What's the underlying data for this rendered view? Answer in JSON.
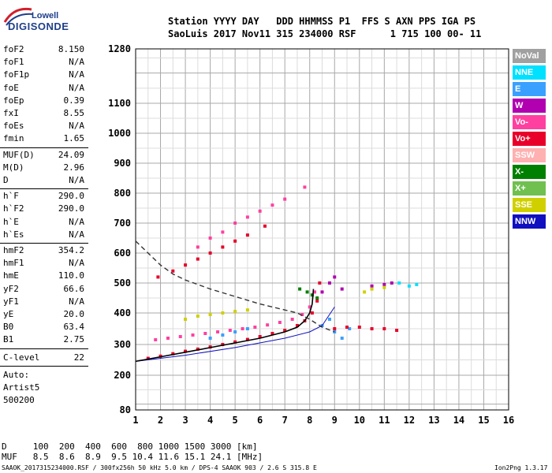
{
  "logo": {
    "line1": "Lowell",
    "line2": "DIGISONDE"
  },
  "header": {
    "row1": "Station YYYY DAY   DDD HHMMSS P1  FFS S AXN PPS IGA PS",
    "row2": "SaoLuis 2017 Nov11 315 234000 RSF      1 715 100 00- 11"
  },
  "params_group1": [
    {
      "name": "foF2",
      "value": "8.150"
    },
    {
      "name": "foF1",
      "value": "N/A"
    },
    {
      "name": "foF1p",
      "value": "N/A"
    },
    {
      "name": "foE",
      "value": "N/A"
    },
    {
      "name": "foEp",
      "value": "0.39"
    },
    {
      "name": "fxI",
      "value": "8.55"
    },
    {
      "name": "foEs",
      "value": "N/A"
    },
    {
      "name": "fmin",
      "value": "1.65"
    }
  ],
  "params_group2": [
    {
      "name": "MUF(D)",
      "value": "24.09"
    },
    {
      "name": "M(D)",
      "value": "2.96"
    },
    {
      "name": "D",
      "value": "N/A"
    }
  ],
  "params_group3": [
    {
      "name": "h`F",
      "value": "290.0"
    },
    {
      "name": "h`F2",
      "value": "290.0"
    },
    {
      "name": "h`E",
      "value": "N/A"
    },
    {
      "name": "h`Es",
      "value": "N/A"
    }
  ],
  "params_group4": [
    {
      "name": "hmF2",
      "value": "354.2"
    },
    {
      "name": "hmF1",
      "value": "N/A"
    },
    {
      "name": "hmE",
      "value": "110.0"
    },
    {
      "name": "yF2",
      "value": "66.6"
    },
    {
      "name": "yF1",
      "value": "N/A"
    },
    {
      "name": "yE",
      "value": "20.0"
    },
    {
      "name": "B0",
      "value": "63.4"
    },
    {
      "name": "B1",
      "value": "2.75"
    }
  ],
  "clevel": {
    "name": "C-level",
    "value": "22"
  },
  "scaling": {
    "line1": "Auto:",
    "line2": "Artist5",
    "line3": "500200"
  },
  "legend": [
    {
      "label": "NoVal",
      "color": "#a0a0a0"
    },
    {
      "label": "NNE",
      "color": "#00e0ff"
    },
    {
      "label": "E",
      "color": "#3aa0ff"
    },
    {
      "label": "W",
      "color": "#b000b0"
    },
    {
      "label": "Vo-",
      "color": "#ff40a0"
    },
    {
      "label": "Vo+",
      "color": "#e8002a"
    },
    {
      "label": "SSW",
      "color": "#ffb0b0"
    },
    {
      "label": "X-",
      "color": "#008000"
    },
    {
      "label": "X+",
      "color": "#70c050"
    },
    {
      "label": "SSE",
      "color": "#d0d000"
    },
    {
      "label": "NNW",
      "color": "#1010c0"
    }
  ],
  "footer": {
    "d_row": "D     100  200  400  600  800 1000 1500 3000 [km]",
    "muf_row": "MUF   8.5  8.6  8.9  9.5 10.4 11.6 15.1 24.1 [MHz]",
    "info": "SAAOK_2017315234000.RSF / 300fx256h 50 kHz 5.0 km / DPS-4 SAAOK 903 / 2.6 S 315.8 E",
    "version": "Ion2Png 1.3.17"
  },
  "chart_data": {
    "type": "scatter",
    "x_ticks": [
      "1",
      "2",
      "3",
      "4",
      "5",
      "6",
      "7",
      "8",
      "9",
      "10",
      "11",
      "12",
      "13",
      "14",
      "15",
      "16"
    ],
    "y_ticks": [
      "80",
      "200",
      "300",
      "400",
      "500",
      "600",
      "700",
      "800",
      "900",
      "1000",
      "1100",
      "1280"
    ],
    "xlim": [
      1,
      16
    ],
    "ylim": [
      80,
      1280
    ],
    "y_scale": "nonlinear",
    "grid": true,
    "series": [
      {
        "color": "#e8002a",
        "points": [
          [
            1.5,
            255
          ],
          [
            2,
            262
          ],
          [
            2.5,
            270
          ],
          [
            3,
            278
          ],
          [
            3.5,
            285
          ],
          [
            4,
            292
          ],
          [
            4.5,
            300
          ],
          [
            5,
            308
          ],
          [
            5.5,
            316
          ],
          [
            6,
            325
          ],
          [
            6.5,
            335
          ],
          [
            7,
            345
          ],
          [
            7.5,
            360
          ],
          [
            7.8,
            375
          ],
          [
            8.1,
            400
          ],
          [
            8.3,
            440
          ],
          [
            8.4,
            500
          ]
        ]
      },
      {
        "color": "#ff40a0",
        "points": [
          [
            1.8,
            315
          ],
          [
            2.3,
            320
          ],
          [
            2.8,
            325
          ],
          [
            3.3,
            330
          ],
          [
            3.8,
            335
          ],
          [
            4.3,
            340
          ],
          [
            4.8,
            345
          ],
          [
            5.3,
            350
          ],
          [
            5.8,
            355
          ],
          [
            6.3,
            362
          ],
          [
            6.8,
            370
          ],
          [
            7.3,
            380
          ],
          [
            7.7,
            395
          ],
          [
            8,
            420
          ],
          [
            8.2,
            470
          ]
        ]
      },
      {
        "color": "#3aa0ff",
        "points": [
          [
            4,
            320
          ],
          [
            4.5,
            330
          ],
          [
            5,
            340
          ],
          [
            5.5,
            350
          ],
          [
            8.5,
            360
          ],
          [
            8.8,
            380
          ],
          [
            9,
            340
          ],
          [
            9.3,
            320
          ],
          [
            9.6,
            350
          ]
        ]
      },
      {
        "color": "#b000b0",
        "points": [
          [
            8.5,
            470
          ],
          [
            8.8,
            500
          ],
          [
            9,
            520
          ],
          [
            9.3,
            480
          ],
          [
            10.5,
            490
          ],
          [
            11,
            495
          ],
          [
            11.3,
            500
          ]
        ]
      },
      {
        "color": "#d0d000",
        "points": [
          [
            3,
            380
          ],
          [
            3.5,
            390
          ],
          [
            4,
            395
          ],
          [
            4.5,
            400
          ],
          [
            5,
            405
          ],
          [
            5.5,
            410
          ],
          [
            10.2,
            470
          ],
          [
            10.5,
            480
          ],
          [
            11,
            485
          ]
        ]
      },
      {
        "color": "#00e0ff",
        "points": [
          [
            11.6,
            500
          ],
          [
            12,
            490
          ],
          [
            12.3,
            495
          ]
        ]
      },
      {
        "color": "#e8002a",
        "points": [
          [
            1.9,
            520
          ],
          [
            2.5,
            540
          ],
          [
            3,
            560
          ],
          [
            3.5,
            580
          ],
          [
            4,
            600
          ],
          [
            4.5,
            620
          ],
          [
            5,
            640
          ],
          [
            5.5,
            660
          ],
          [
            6.2,
            690
          ]
        ]
      },
      {
        "color": "#ff40a0",
        "points": [
          [
            3.5,
            620
          ],
          [
            4,
            650
          ],
          [
            4.5,
            670
          ],
          [
            5,
            700
          ],
          [
            5.5,
            720
          ],
          [
            6,
            740
          ],
          [
            6.5,
            760
          ],
          [
            7,
            780
          ],
          [
            7.8,
            820
          ]
        ]
      },
      {
        "color": "#e8002a",
        "points": [
          [
            9,
            350
          ],
          [
            9.5,
            355
          ],
          [
            10,
            355
          ],
          [
            10.5,
            350
          ],
          [
            11,
            350
          ],
          [
            11.5,
            345
          ]
        ]
      },
      {
        "color": "#008000",
        "points": [
          [
            7.6,
            480
          ],
          [
            7.9,
            470
          ],
          [
            8.1,
            460
          ],
          [
            8.3,
            450
          ]
        ]
      }
    ],
    "curves": {
      "trace_solid": [
        [
          1,
          245
        ],
        [
          2,
          260
        ],
        [
          3,
          275
        ],
        [
          4,
          290
        ],
        [
          5,
          305
        ],
        [
          6,
          320
        ],
        [
          7,
          340
        ],
        [
          7.5,
          355
        ],
        [
          7.8,
          375
        ],
        [
          8,
          400
        ],
        [
          8.1,
          430
        ],
        [
          8.15,
          480
        ]
      ],
      "trace_dashed": [
        [
          1,
          640
        ],
        [
          1.5,
          600
        ],
        [
          2,
          560
        ],
        [
          2.5,
          530
        ],
        [
          3,
          510
        ],
        [
          4,
          480
        ],
        [
          5,
          455
        ],
        [
          6,
          430
        ],
        [
          7,
          410
        ],
        [
          7.5,
          400
        ],
        [
          8,
          380
        ],
        [
          8.5,
          355
        ],
        [
          9,
          340
        ]
      ],
      "thin_line": [
        [
          1,
          245
        ],
        [
          3,
          265
        ],
        [
          5,
          290
        ],
        [
          7,
          320
        ],
        [
          8,
          340
        ],
        [
          8.5,
          360
        ],
        [
          9,
          420
        ]
      ]
    }
  }
}
